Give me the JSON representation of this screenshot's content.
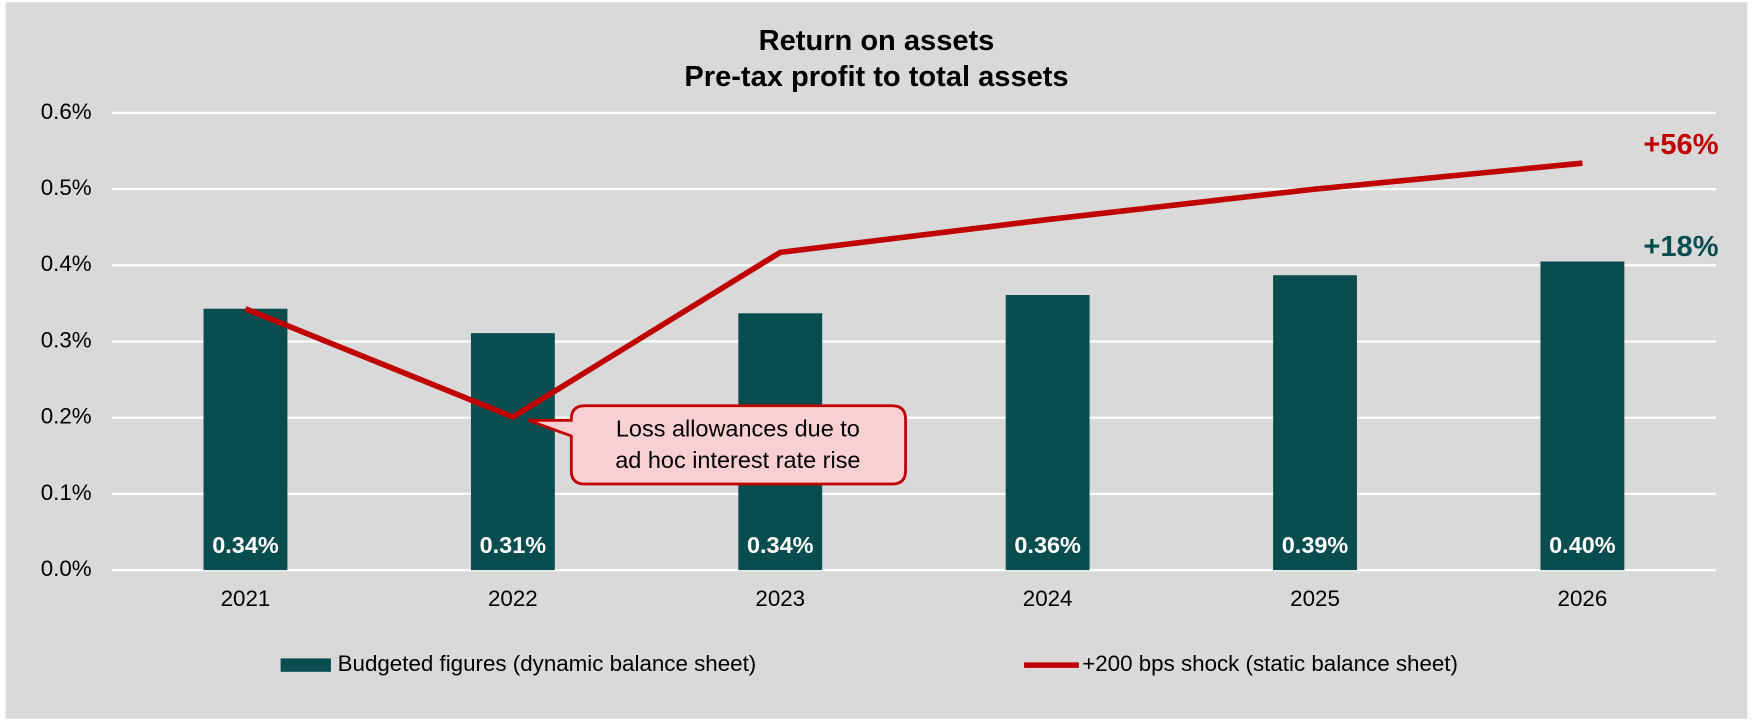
{
  "chart_data": {
    "type": "bar",
    "title": "Return on assets",
    "subtitle": "Pre-tax profit to total assets",
    "categories": [
      "2021",
      "2022",
      "2023",
      "2024",
      "2025",
      "2026"
    ],
    "series": [
      {
        "name": "Budgeted figures (dynamic balance sheet)",
        "type": "bar",
        "color": "#0a4d4e",
        "values": [
          0.343,
          0.311,
          0.337,
          0.361,
          0.387,
          0.405
        ],
        "value_labels": [
          "0.34%",
          "0.31%",
          "0.34%",
          "0.36%",
          "0.39%",
          "0.40%"
        ]
      },
      {
        "name": "+200 bps shock (static balance sheet)",
        "type": "line",
        "color": "#c00000",
        "values": [
          0.343,
          0.201,
          0.417,
          0.46,
          0.5,
          0.534
        ]
      }
    ],
    "ylim": [
      0,
      0.6
    ],
    "yticks": [
      {
        "value": 0,
        "label": "0.0%"
      },
      {
        "value": 0.1,
        "label": "0.1%"
      },
      {
        "value": 0.2,
        "label": "0.2%"
      },
      {
        "value": 0.3,
        "label": "0.3%"
      },
      {
        "value": 0.4,
        "label": "0.4%"
      },
      {
        "value": 0.5,
        "label": "0.5%"
      },
      {
        "value": 0.6,
        "label": "0.6%"
      }
    ],
    "grid": true,
    "legend": "bottom",
    "annotations": [
      {
        "text": "+56%",
        "color": "#c00000"
      },
      {
        "text": "+18%",
        "color": "#0a4d4e"
      }
    ],
    "callout": [
      "Loss allowances due to",
      "ad hoc interest rate rise"
    ]
  }
}
